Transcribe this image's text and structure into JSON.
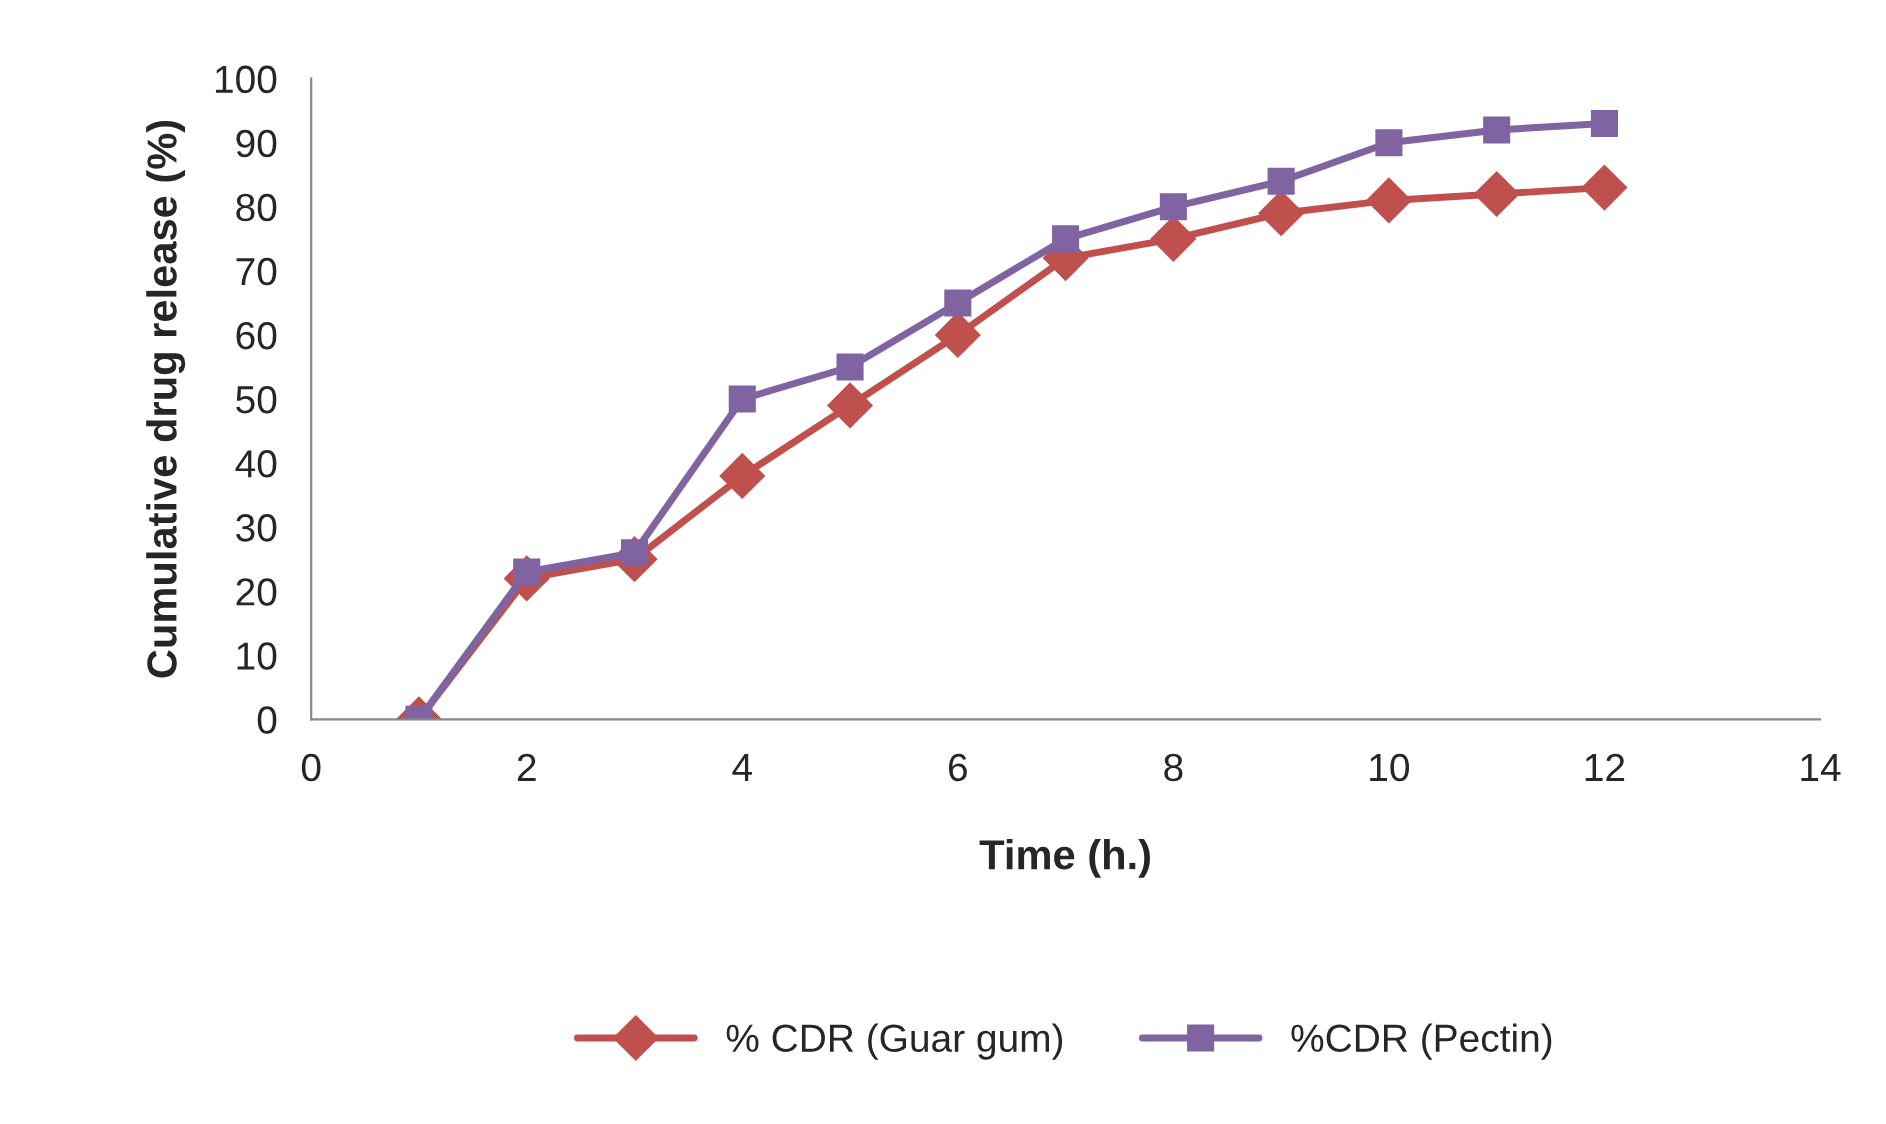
{
  "chart_data": {
    "type": "line",
    "xlabel": "Time (h.)",
    "ylabel": "Cumulative drug release (%)",
    "x": [
      1,
      2,
      3,
      4,
      5,
      6,
      7,
      8,
      9,
      10,
      11,
      12
    ],
    "series": [
      {
        "name": "% CDR (Guar gum)",
        "color": "#c0504d",
        "marker": "diamond",
        "values": [
          0,
          22,
          25,
          38,
          49,
          60,
          72,
          75,
          79,
          81,
          82,
          83
        ]
      },
      {
        "name": "%CDR (Pectin)",
        "color": "#8064a2",
        "marker": "square",
        "values": [
          0,
          23,
          26,
          50,
          55,
          65,
          75,
          80,
          84,
          90,
          92,
          93
        ]
      }
    ],
    "xlim": [
      0,
      14
    ],
    "xticks": [
      0,
      2,
      4,
      6,
      8,
      10,
      12,
      14
    ],
    "ylim": [
      0,
      100
    ],
    "yticks": [
      0,
      10,
      20,
      30,
      40,
      50,
      60,
      70,
      80,
      90,
      100
    ],
    "grid": false,
    "legend": "bottom",
    "line_style": "solid"
  }
}
